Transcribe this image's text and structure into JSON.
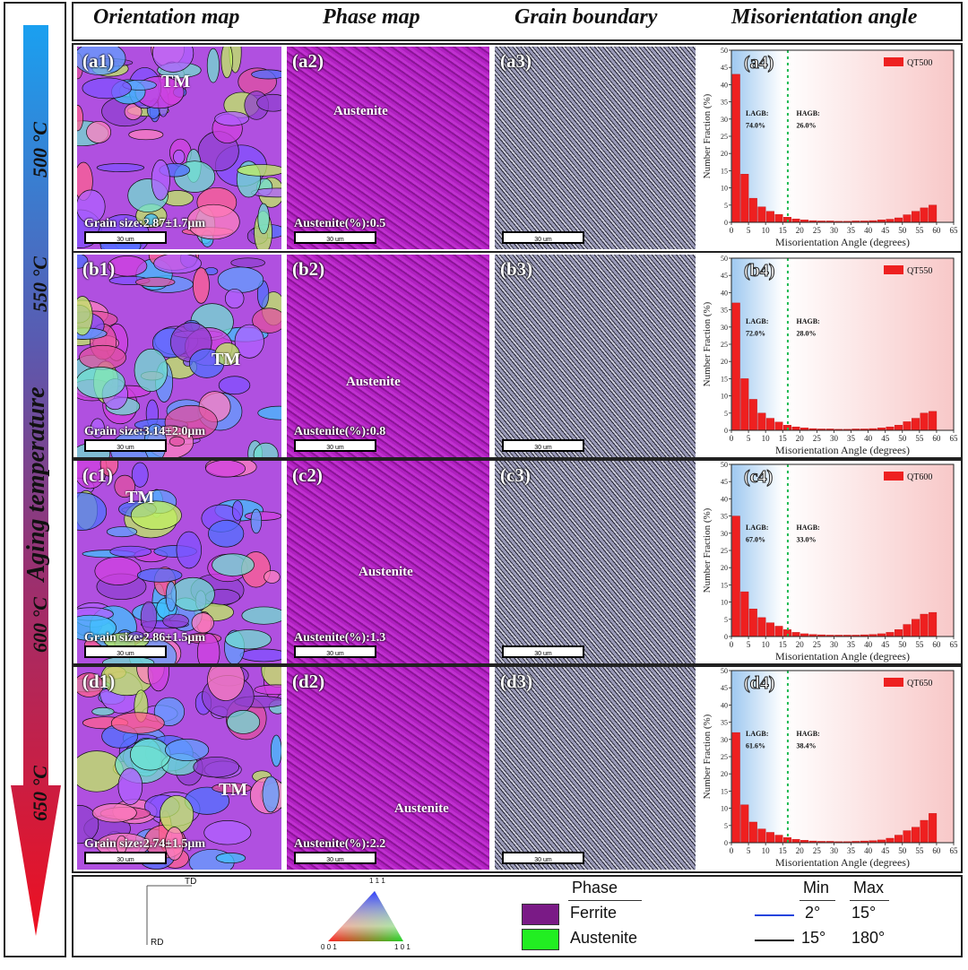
{
  "columns": {
    "orientation": "Orientation map",
    "phase": "Phase map",
    "grain": "Grain boundary",
    "misorientation": "Misorientation angle"
  },
  "side": {
    "title": "Aging temperature",
    "temps": [
      "500 °C",
      "550 °C",
      "600 °C",
      "650 °C"
    ]
  },
  "rows": [
    {
      "labels": [
        "(a1)",
        "(a2)",
        "(a3)",
        "(a4)"
      ],
      "grain_size": "Grain size:2.87±1.7μm",
      "austenite": "Austenite(%):0.5",
      "scale": "30 um"
    },
    {
      "labels": [
        "(b1)",
        "(b2)",
        "(b3)",
        "(b4)"
      ],
      "grain_size": "Grain size:3.14±2.0μm",
      "austenite": "Austenite(%):0.8",
      "scale": "30 um"
    },
    {
      "labels": [
        "(c1)",
        "(c2)",
        "(c3)",
        "(c4)"
      ],
      "grain_size": "Grain size:2.86±1.5μm",
      "austenite": "Austenite(%):1.3",
      "scale": "30 um"
    },
    {
      "labels": [
        "(d1)",
        "(d2)",
        "(d3)",
        "(d4)"
      ],
      "grain_size": "Grain size:2.74±1.5μm",
      "austenite": "Austenite(%):2.2",
      "scale": "30 um"
    }
  ],
  "tm_label": "TM",
  "austenite_label": "Austenite",
  "legend": {
    "td": "TD",
    "rd": "RD",
    "ipf_top": "1 1 1",
    "ipf_left": "0 0 1",
    "ipf_right": "1 0 1",
    "phase_title": "Phase",
    "ferrite": "Ferrite",
    "austenite": "Austenite",
    "min": "Min",
    "max": "Max",
    "low_min": "2°",
    "low_max": "15°",
    "high_min": "15°",
    "high_max": "180°",
    "colors": {
      "ferrite": "#7a1a86",
      "austenite": "#22ee22",
      "low": "#2244dd",
      "high": "#111111"
    }
  },
  "chart_data": [
    {
      "type": "bar",
      "legend": "QT500",
      "xlabel": "Misorientation Angle (degrees)",
      "ylabel": "Number Fraction (%)",
      "xlim": [
        0,
        65
      ],
      "ylim": [
        0,
        50
      ],
      "xticks": [
        0,
        5,
        10,
        15,
        20,
        25,
        30,
        35,
        40,
        45,
        50,
        55,
        60,
        65
      ],
      "yticks": [
        0,
        5,
        10,
        15,
        20,
        25,
        30,
        35,
        40,
        45,
        50
      ],
      "x": [
        2.5,
        5,
        7.5,
        10,
        12.5,
        15,
        17.5,
        20,
        22.5,
        25,
        27.5,
        30,
        32.5,
        35,
        37.5,
        40,
        42.5,
        45,
        47.5,
        50,
        52.5,
        55,
        57.5,
        60
      ],
      "values": [
        43,
        14,
        7,
        4.5,
        3.2,
        2.3,
        1.5,
        1.0,
        0.7,
        0.5,
        0.4,
        0.4,
        0.3,
        0.3,
        0.4,
        0.4,
        0.5,
        0.7,
        0.9,
        1.3,
        2.2,
        3.2,
        4.2,
        5.0
      ],
      "threshold": 15,
      "lagb": "LAGB:",
      "lagb_value": "74.0%",
      "hagb": "HAGB:",
      "hagb_value": "26.0%"
    },
    {
      "type": "bar",
      "legend": "QT550",
      "xlabel": "Misorientation Angle (degrees)",
      "ylabel": "Number Fraction (%)",
      "xlim": [
        0,
        65
      ],
      "ylim": [
        0,
        50
      ],
      "xticks": [
        0,
        5,
        10,
        15,
        20,
        25,
        30,
        35,
        40,
        45,
        50,
        55,
        60,
        65
      ],
      "yticks": [
        0,
        5,
        10,
        15,
        20,
        25,
        30,
        35,
        40,
        45,
        50
      ],
      "x": [
        2.5,
        5,
        7.5,
        10,
        12.5,
        15,
        17.5,
        20,
        22.5,
        25,
        27.5,
        30,
        32.5,
        35,
        37.5,
        40,
        42.5,
        45,
        47.5,
        50,
        52.5,
        55,
        57.5,
        60
      ],
      "values": [
        37,
        15,
        9,
        5,
        3.5,
        2.4,
        1.5,
        1.0,
        0.7,
        0.5,
        0.4,
        0.4,
        0.3,
        0.3,
        0.4,
        0.4,
        0.5,
        0.7,
        1.0,
        1.5,
        2.5,
        3.5,
        5.0,
        5.5
      ],
      "threshold": 15,
      "lagb": "LAGB:",
      "lagb_value": "72.0%",
      "hagb": "HAGB:",
      "hagb_value": "28.0%"
    },
    {
      "type": "bar",
      "legend": "QT600",
      "xlabel": "Misorientation Angle (degrees)",
      "ylabel": "Number Fraction (%)",
      "xlim": [
        0,
        65
      ],
      "ylim": [
        0,
        50
      ],
      "xticks": [
        0,
        5,
        10,
        15,
        20,
        25,
        30,
        35,
        40,
        45,
        50,
        55,
        60,
        65
      ],
      "yticks": [
        0,
        5,
        10,
        15,
        20,
        25,
        30,
        35,
        40,
        45,
        50
      ],
      "x": [
        2.5,
        5,
        7.5,
        10,
        12.5,
        15,
        17.5,
        20,
        22.5,
        25,
        27.5,
        30,
        32.5,
        35,
        37.5,
        40,
        42.5,
        45,
        47.5,
        50,
        52.5,
        55,
        57.5,
        60
      ],
      "values": [
        35,
        13,
        8,
        5.5,
        4,
        3,
        2,
        1.2,
        0.8,
        0.6,
        0.5,
        0.4,
        0.4,
        0.4,
        0.4,
        0.5,
        0.6,
        0.8,
        1.2,
        2.0,
        3.5,
        5.0,
        6.5,
        7.0
      ],
      "threshold": 15,
      "lagb": "LAGB:",
      "lagb_value": "67.0%",
      "hagb": "HAGB:",
      "hagb_value": "33.0%"
    },
    {
      "type": "bar",
      "legend": "QT650",
      "xlabel": "Misorientation Angle (degrees)",
      "ylabel": "Number Fraction (%)",
      "xlim": [
        0,
        65
      ],
      "ylim": [
        0,
        50
      ],
      "xticks": [
        0,
        5,
        10,
        15,
        20,
        25,
        30,
        35,
        40,
        45,
        50,
        55,
        60,
        65
      ],
      "yticks": [
        0,
        5,
        10,
        15,
        20,
        25,
        30,
        35,
        40,
        45,
        50
      ],
      "x": [
        2.5,
        5,
        7.5,
        10,
        12.5,
        15,
        17.5,
        20,
        22.5,
        25,
        27.5,
        30,
        32.5,
        35,
        37.5,
        40,
        42.5,
        45,
        47.5,
        50,
        52.5,
        55,
        57.5,
        60
      ],
      "values": [
        32,
        11,
        6,
        4,
        3,
        2.2,
        1.5,
        1.0,
        0.7,
        0.5,
        0.4,
        0.4,
        0.3,
        0.3,
        0.4,
        0.5,
        0.6,
        0.8,
        1.3,
        2.2,
        3.5,
        4.5,
        6.5,
        8.5
      ],
      "threshold": 15,
      "lagb": "LAGB:",
      "lagb_value": "61.6%",
      "hagb": "HAGB:",
      "hagb_value": "38.4%"
    }
  ]
}
